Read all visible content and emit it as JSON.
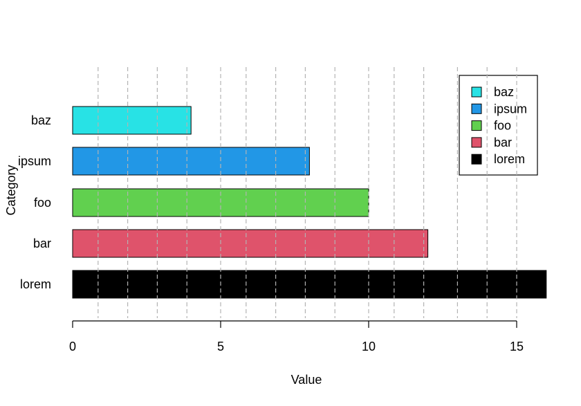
{
  "chart_data": {
    "type": "bar",
    "orientation": "horizontal",
    "title": "",
    "xlabel": "Value",
    "ylabel": "Category",
    "categories": [
      "lorem",
      "bar",
      "foo",
      "ipsum",
      "baz"
    ],
    "values": [
      16,
      12,
      10,
      8,
      4
    ],
    "colors": [
      "#000000",
      "#DF536B",
      "#61D04F",
      "#2297E6",
      "#28E2E5"
    ],
    "xlim": [
      0,
      16
    ],
    "xticks": [
      "0",
      "5",
      "10",
      "15"
    ],
    "xtick_values": [
      0,
      5,
      10,
      15
    ],
    "gridlines_x": [
      0.86,
      1.86,
      2.86,
      3.86,
      5,
      5.86,
      6.86,
      7.86,
      8.86,
      10,
      10.86,
      11.86,
      13,
      14,
      15
    ],
    "grid": "vertical dashed",
    "legend": {
      "placement": "top-right",
      "entries": [
        "baz",
        "ipsum",
        "foo",
        "bar",
        "lorem"
      ]
    }
  }
}
